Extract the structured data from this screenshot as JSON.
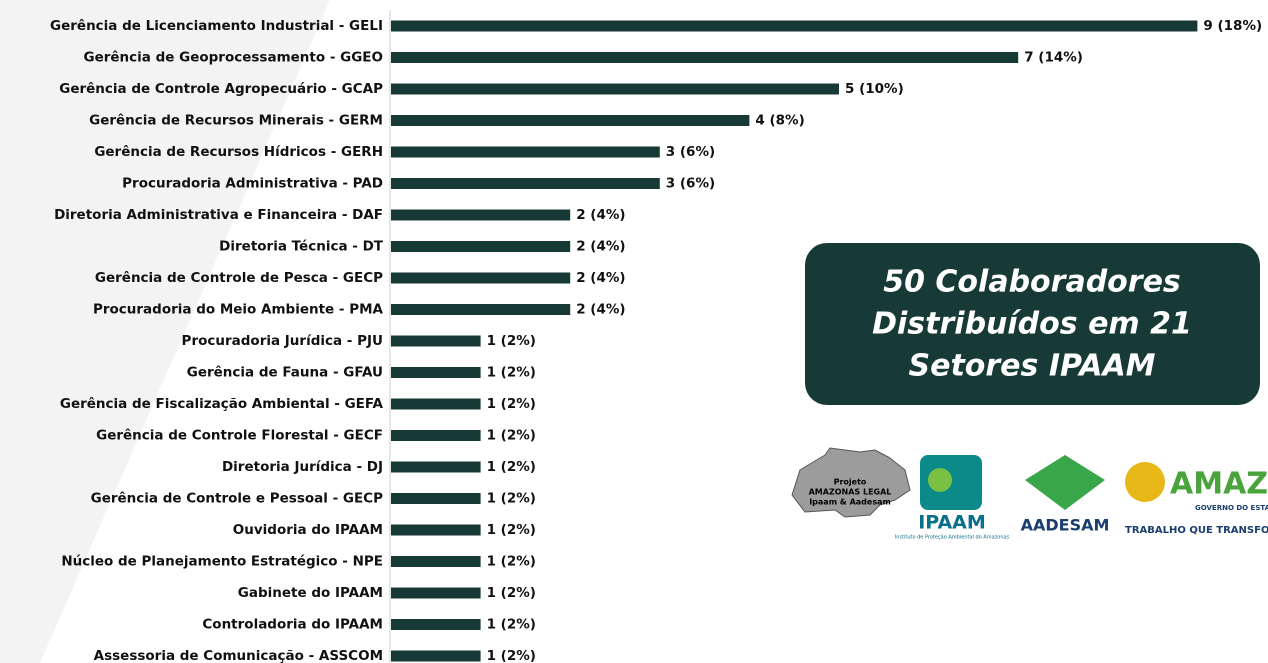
{
  "chart_data": {
    "type": "bar",
    "orientation": "horizontal",
    "color": "#173a36",
    "categories": [
      "Gerência de Licenciamento Industrial - GELI",
      "Gerência de Geoprocessamento - GGEO",
      "Gerência de Controle Agropecuário - GCAP",
      "Gerência de Recursos Minerais - GERM",
      "Gerência de Recursos Hídricos - GERH",
      "Procuradoria Administrativa - PAD",
      "Diretoria Administrativa e Financeira - DAF",
      "Diretoria Técnica - DT",
      "Gerência de Controle de Pesca - GECP",
      "Procuradoria do Meio Ambiente - PMA",
      "Procuradoria Jurídica - PJU",
      "Gerência de Fauna - GFAU",
      "Gerência de Fiscalização Ambiental - GEFA",
      "Gerência de Controle Florestal - GECF",
      "Diretoria Jurídica - DJ",
      "Gerência de Controle e Pessoal - GECP",
      "Ouvidoria do IPAAM",
      "Núcleo de Planejamento Estratégico - NPE",
      "Gabinete do IPAAM",
      "Controladoria do IPAAM",
      "Assessoria de Comunicação - ASSCOM"
    ],
    "values": [
      9,
      7,
      5,
      4,
      3,
      3,
      2,
      2,
      2,
      2,
      1,
      1,
      1,
      1,
      1,
      1,
      1,
      1,
      1,
      1,
      1
    ],
    "value_labels": [
      "9 (18%)",
      "7 (14%)",
      "5 (10%)",
      "4 (8%)",
      "3 (6%)",
      "3 (6%)",
      "2 (4%)",
      "2 (4%)",
      "2 (4%)",
      "2 (4%)",
      "1 (2%)",
      "1 (2%)",
      "1 (2%)",
      "1 (2%)",
      "1 (2%)",
      "1 (2%)",
      "1 (2%)",
      "1 (2%)",
      "1 (2%)",
      "1 (2%)",
      "1 (2%)"
    ],
    "annotation": [
      "50 Colaboradores",
      "Distribuídos em 21",
      "Setores  IPAAM"
    ]
  },
  "logos": {
    "project": [
      "Projeto",
      "AMAZONAS LEGAL",
      "Ipaam & Aadesam"
    ],
    "ipaam": "IPAAM",
    "ipaam_sub": "Instituto de Proteção Ambiental do Amazonas",
    "aadesam": "AADESAM",
    "amazonas": "AMAZONAS",
    "amazonas_sub": "GOVERNO DO ESTADO",
    "amazonas_slogan": "TRABALHO QUE TRANSFORMA"
  }
}
